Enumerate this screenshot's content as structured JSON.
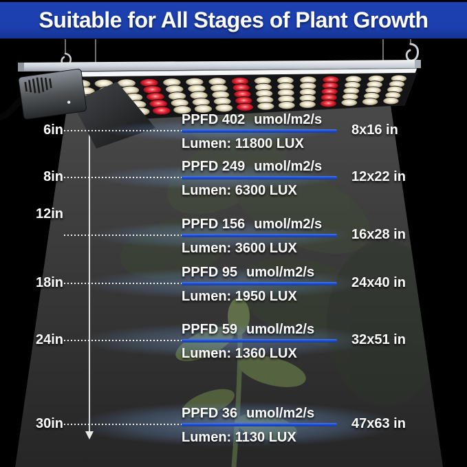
{
  "header": {
    "title": "Suitable for All Stages of Plant Growth",
    "bg_color": "#1c3fae",
    "text_color": "#ffffff"
  },
  "light_fixture": {
    "description": "LED quantum-board grow light hanging from two wire hooks, driver box on left with power cable",
    "led_columns": 15,
    "led_rows": 5,
    "red_led_column_numbers": [
      4,
      8,
      12
    ],
    "white_led_color": "#f3ecd6",
    "red_led_color": "#e02836"
  },
  "measurements": [
    {
      "distance": "6in",
      "ppfd": "PPFD 402",
      "ppfd_unit": "umol/m2/s",
      "lumen": "Lumen: 11800 LUX",
      "coverage": "8x16 in"
    },
    {
      "distance": "8in",
      "ppfd": "PPFD 249",
      "ppfd_unit": "umol/m2/s",
      "lumen": "Lumen: 6300 LUX",
      "coverage": "12x22 in"
    },
    {
      "distance": "12in",
      "ppfd": "PPFD 156",
      "ppfd_unit": "umol/m2/s",
      "lumen": "Lumen: 3600 LUX",
      "coverage": "16x28 in"
    },
    {
      "distance": "18in",
      "ppfd": "PPFD 95",
      "ppfd_unit": "umol/m2/s",
      "lumen": "Lumen: 1950 LUX",
      "coverage": "24x40 in"
    },
    {
      "distance": "24in",
      "ppfd": "PPFD 59",
      "ppfd_unit": "umol/m2/s",
      "lumen": "Lumen: 1360 LUX",
      "coverage": "32x51 in"
    },
    {
      "distance": "30in",
      "ppfd": "PPFD 36",
      "ppfd_unit": "umol/m2/s",
      "lumen": "Lumen: 1130 LUX",
      "coverage": "47x63 in"
    }
  ],
  "colors": {
    "bar_blue": "#1e50d8",
    "glow_blue": "#7da0cf",
    "beam_gray": "#424242",
    "background": "#000000"
  }
}
